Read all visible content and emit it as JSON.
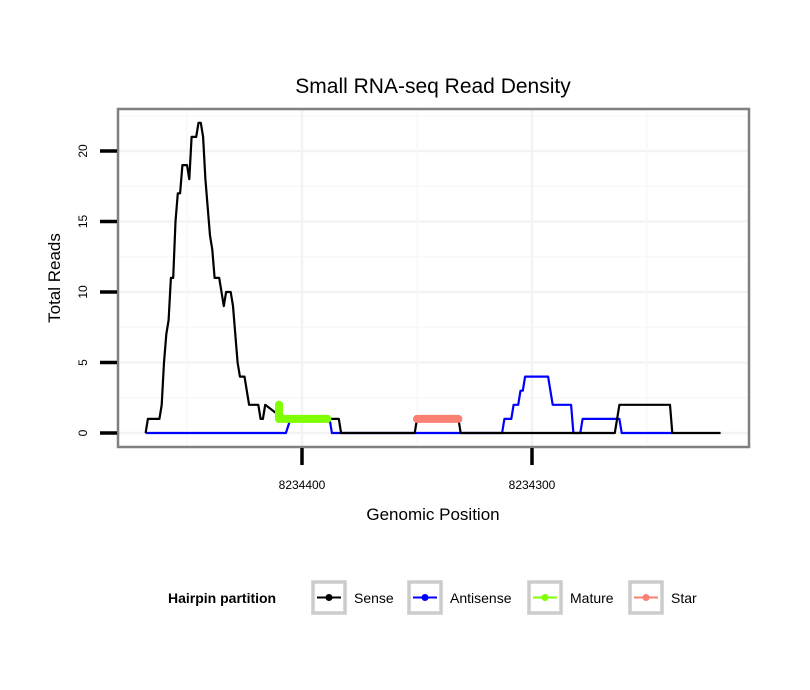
{
  "chart_data": {
    "type": "line",
    "title": "Small RNA-seq Read Density",
    "xlabel": "Genomic Position",
    "ylabel": "Total Reads",
    "x_reversed": true,
    "xlim": [
      8234480,
      8234205
    ],
    "ylim": [
      -0.8,
      23
    ],
    "x_ticks": [
      8234400,
      8234300
    ],
    "x_tick_labels": [
      "8234400",
      "8234300"
    ],
    "y_ticks": [
      0,
      5,
      10,
      15,
      20
    ],
    "y_tick_labels": [
      "0",
      "5",
      "10",
      "15",
      "20"
    ],
    "grid": true,
    "legend": {
      "title": "Hairpin partition",
      "position": "bottom",
      "entries": [
        "Sense",
        "Antisense",
        "Mature",
        "Star"
      ]
    },
    "series": [
      {
        "name": "Sense",
        "color": "#000000",
        "points": [
          [
            8234468,
            0
          ],
          [
            8234467,
            1
          ],
          [
            8234462,
            1
          ],
          [
            8234461,
            2
          ],
          [
            8234460,
            5
          ],
          [
            8234459,
            7
          ],
          [
            8234458,
            8
          ],
          [
            8234457,
            11
          ],
          [
            8234456,
            11
          ],
          [
            8234455,
            15
          ],
          [
            8234454,
            17
          ],
          [
            8234453,
            17
          ],
          [
            8234452,
            19
          ],
          [
            8234450,
            19
          ],
          [
            8234449,
            18
          ],
          [
            8234448,
            21
          ],
          [
            8234446,
            21
          ],
          [
            8234445,
            22
          ],
          [
            8234444,
            22
          ],
          [
            8234443,
            21
          ],
          [
            8234442,
            18
          ],
          [
            8234441,
            16
          ],
          [
            8234440,
            14
          ],
          [
            8234439,
            13
          ],
          [
            8234438,
            11
          ],
          [
            8234436,
            11
          ],
          [
            8234435,
            10
          ],
          [
            8234434,
            9
          ],
          [
            8234433,
            10
          ],
          [
            8234431,
            10
          ],
          [
            8234430,
            9
          ],
          [
            8234429,
            7
          ],
          [
            8234428,
            5
          ],
          [
            8234427,
            4
          ],
          [
            8234425,
            4
          ],
          [
            8234424,
            3
          ],
          [
            8234423,
            2
          ],
          [
            8234419,
            2
          ],
          [
            8234418,
            1
          ],
          [
            8234417,
            1
          ],
          [
            8234416,
            2
          ],
          [
            8234408,
            1
          ],
          [
            8234384,
            1
          ],
          [
            8234383,
            0
          ],
          [
            8234351,
            0
          ],
          [
            8234350,
            1
          ],
          [
            8234332,
            1
          ],
          [
            8234331,
            0
          ],
          [
            8234264,
            0
          ],
          [
            8234263,
            1
          ],
          [
            8234262,
            2
          ],
          [
            8234240,
            2
          ],
          [
            8234239,
            0
          ],
          [
            8234218,
            0
          ]
        ]
      },
      {
        "name": "Antisense",
        "color": "#0000ff",
        "points": [
          [
            8234468,
            0
          ],
          [
            8234407,
            0
          ],
          [
            8234405,
            1
          ],
          [
            8234388,
            1
          ],
          [
            8234387,
            0
          ],
          [
            8234350,
            0
          ],
          [
            8234349,
            0
          ],
          [
            8234332,
            0
          ],
          [
            8234313,
            0
          ],
          [
            8234312,
            1
          ],
          [
            8234309,
            1
          ],
          [
            8234308,
            2
          ],
          [
            8234306,
            2
          ],
          [
            8234305,
            3
          ],
          [
            8234304,
            3
          ],
          [
            8234303,
            4
          ],
          [
            8234293,
            4
          ],
          [
            8234292,
            3
          ],
          [
            8234291,
            2
          ],
          [
            8234283,
            2
          ],
          [
            8234282,
            0
          ],
          [
            8234279,
            0
          ],
          [
            8234278,
            1
          ],
          [
            8234262,
            1
          ],
          [
            8234261,
            0
          ],
          [
            8234239,
            0
          ]
        ]
      },
      {
        "name": "Mature",
        "color": "#7fff00",
        "points": [
          [
            8234410,
            2
          ],
          [
            8234410,
            1
          ],
          [
            8234389,
            1
          ]
        ]
      },
      {
        "name": "Star",
        "color": "#fa8072",
        "points": [
          [
            8234350,
            1
          ],
          [
            8234332,
            1
          ]
        ]
      }
    ]
  }
}
